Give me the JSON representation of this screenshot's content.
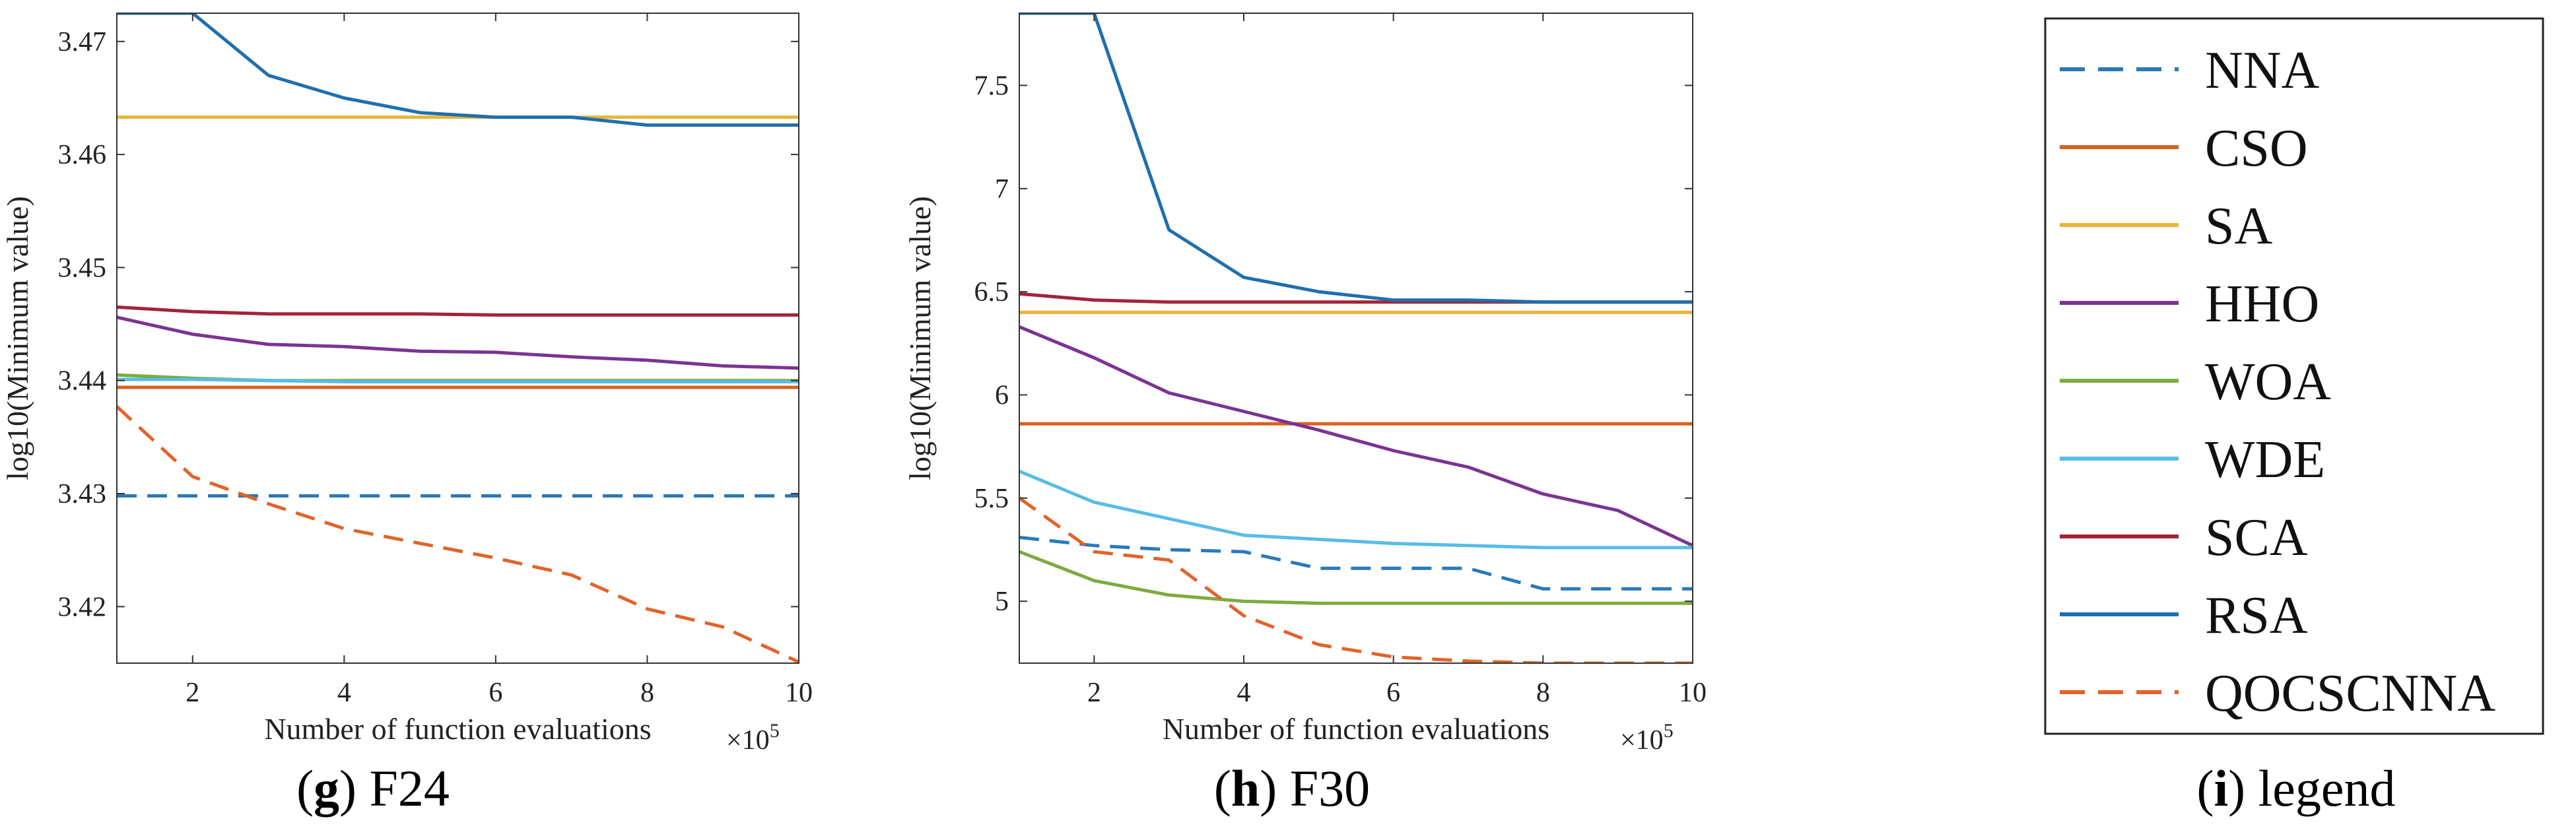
{
  "panels": {
    "g": {
      "letter": "g",
      "label": "F24",
      "open": "(",
      "close": ")"
    },
    "h": {
      "letter": "h",
      "label": "F30",
      "open": "(",
      "close": ")"
    },
    "i": {
      "letter": "i",
      "label": "legend",
      "open": "(",
      "close": ")"
    }
  },
  "legend": {
    "items": [
      {
        "name": "NNA",
        "color": "#2a7ab8",
        "dashed": true
      },
      {
        "name": "CSO",
        "color": "#d9601f",
        "dashed": false
      },
      {
        "name": "SA",
        "color": "#e8b53a",
        "dashed": false
      },
      {
        "name": "HHO",
        "color": "#7b3492",
        "dashed": false
      },
      {
        "name": "WOA",
        "color": "#7dab3e",
        "dashed": false
      },
      {
        "name": "WDE",
        "color": "#56bde6",
        "dashed": false
      },
      {
        "name": "SCA",
        "color": "#a3233a",
        "dashed": false
      },
      {
        "name": "RSA",
        "color": "#1f6fae",
        "dashed": false
      },
      {
        "name": "QOCSCNNA",
        "color": "#e0642a",
        "dashed": true
      }
    ]
  },
  "chart_data": [
    {
      "id": "g",
      "type": "line",
      "title": "F24",
      "xlabel": "Number of function evaluations",
      "ylabel": "log10(Minimum value)",
      "x_multiplier": "×10",
      "x_multiplier_exp": "5",
      "xlim": [
        1,
        10
      ],
      "ylim": [
        3.415,
        3.4725
      ],
      "xticks": [
        2,
        4,
        6,
        8,
        10
      ],
      "yticks": [
        3.42,
        3.43,
        3.44,
        3.45,
        3.46,
        3.47
      ],
      "x": [
        1,
        2,
        3,
        4,
        5,
        6,
        7,
        8,
        9,
        10
      ],
      "series": [
        {
          "name": "NNA",
          "values": [
            3.4298,
            3.4298,
            3.4298,
            3.4298,
            3.4298,
            3.4298,
            3.4298,
            3.4298,
            3.4298,
            3.4298
          ]
        },
        {
          "name": "CSO",
          "values": [
            3.4394,
            3.4394,
            3.4394,
            3.4394,
            3.4394,
            3.4394,
            3.4394,
            3.4394,
            3.4394,
            3.4394
          ]
        },
        {
          "name": "SA",
          "values": [
            3.4633,
            3.4633,
            3.4633,
            3.4633,
            3.4633,
            3.4633,
            3.4633,
            3.4633,
            3.4633,
            3.4633
          ]
        },
        {
          "name": "HHO",
          "values": [
            3.4456,
            3.4441,
            3.4432,
            3.443,
            3.4426,
            3.4425,
            3.4421,
            3.4418,
            3.4413,
            3.4411
          ]
        },
        {
          "name": "WOA",
          "values": [
            3.4405,
            3.4402,
            3.44,
            3.44,
            3.44,
            3.44,
            3.44,
            3.44,
            3.44,
            3.44
          ]
        },
        {
          "name": "WDE",
          "values": [
            3.4401,
            3.4401,
            3.44,
            3.4399,
            3.4399,
            3.4399,
            3.4399,
            3.4399,
            3.4399,
            3.4399
          ]
        },
        {
          "name": "SCA",
          "values": [
            3.4465,
            3.4461,
            3.4459,
            3.4459,
            3.4459,
            3.4458,
            3.4458,
            3.4458,
            3.4458,
            3.4458
          ]
        },
        {
          "name": "RSA",
          "values": [
            3.4725,
            3.4725,
            3.467,
            3.465,
            3.4637,
            3.4633,
            3.4633,
            3.4626,
            3.4626,
            3.4626
          ]
        },
        {
          "name": "QOCSCNNA",
          "values": [
            3.4377,
            3.4315,
            3.4291,
            3.4269,
            3.4256,
            3.4243,
            3.4228,
            3.4198,
            3.4182,
            3.4151
          ]
        }
      ]
    },
    {
      "id": "h",
      "type": "line",
      "title": "F30",
      "xlabel": "Number of function evaluations",
      "ylabel": "log10(Minimum value)",
      "x_multiplier": "×10",
      "x_multiplier_exp": "5",
      "xlim": [
        1,
        10
      ],
      "ylim": [
        4.7,
        7.85
      ],
      "xticks": [
        2,
        4,
        6,
        8,
        10
      ],
      "yticks": [
        5,
        5.5,
        6,
        6.5,
        7,
        7.5
      ],
      "x": [
        1,
        2,
        3,
        4,
        5,
        6,
        7,
        8,
        9,
        10
      ],
      "series": [
        {
          "name": "NNA",
          "values": [
            5.31,
            5.27,
            5.25,
            5.24,
            5.16,
            5.16,
            5.16,
            5.06,
            5.06,
            5.06
          ]
        },
        {
          "name": "CSO",
          "values": [
            5.86,
            5.86,
            5.86,
            5.86,
            5.86,
            5.86,
            5.86,
            5.86,
            5.86,
            5.86
          ]
        },
        {
          "name": "SA",
          "values": [
            6.4,
            6.4,
            6.4,
            6.4,
            6.4,
            6.4,
            6.4,
            6.4,
            6.4,
            6.4
          ]
        },
        {
          "name": "HHO",
          "values": [
            6.33,
            6.18,
            6.01,
            5.92,
            5.83,
            5.73,
            5.65,
            5.52,
            5.44,
            5.27
          ]
        },
        {
          "name": "WOA",
          "values": [
            5.24,
            5.1,
            5.03,
            5.0,
            4.99,
            4.99,
            4.99,
            4.99,
            4.99,
            4.99
          ]
        },
        {
          "name": "WDE",
          "values": [
            5.63,
            5.48,
            5.4,
            5.32,
            5.3,
            5.28,
            5.27,
            5.26,
            5.26,
            5.26
          ]
        },
        {
          "name": "SCA",
          "values": [
            6.49,
            6.46,
            6.45,
            6.45,
            6.45,
            6.45,
            6.45,
            6.45,
            6.45,
            6.45
          ]
        },
        {
          "name": "RSA",
          "values": [
            7.85,
            7.85,
            6.8,
            6.57,
            6.5,
            6.46,
            6.46,
            6.45,
            6.45,
            6.45
          ]
        },
        {
          "name": "QOCSCNNA",
          "values": [
            5.5,
            5.24,
            5.2,
            4.93,
            4.79,
            4.73,
            4.71,
            4.7,
            4.7,
            4.7
          ]
        }
      ]
    }
  ]
}
